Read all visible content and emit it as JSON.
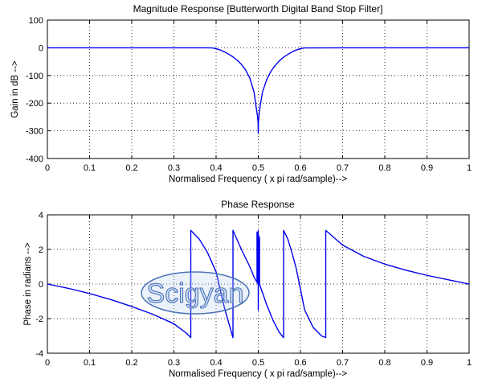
{
  "watermark": {
    "text": "Scigyan"
  },
  "chart_data": [
    {
      "type": "line",
      "title": "Magnitude Response [Butterworth Digital Band Stop Filter]",
      "xlabel": "Normalised Frequency ( x pi rad/sample)-->",
      "ylabel": "Gain in dB -->",
      "xlim": [
        0,
        1
      ],
      "ylim": [
        -400,
        100
      ],
      "xticks": [
        "0",
        "0.1",
        "0.2",
        "0.3",
        "0.4",
        "0.5",
        "0.6",
        "0.7",
        "0.8",
        "0.9",
        "1"
      ],
      "yticks": [
        "100",
        "0",
        "-100",
        "-200",
        "-300",
        "-400"
      ],
      "grid": true,
      "series": [
        {
          "color": "#0000ee",
          "x": [
            0,
            0.1,
            0.2,
            0.3,
            0.38,
            0.39,
            0.4,
            0.41,
            0.42,
            0.43,
            0.44,
            0.45,
            0.46,
            0.47,
            0.48,
            0.49,
            0.495,
            0.498,
            0.4995,
            0.5,
            0.5005,
            0.502,
            0.505,
            0.51,
            0.52,
            0.53,
            0.54,
            0.55,
            0.56,
            0.57,
            0.58,
            0.59,
            0.6,
            0.61,
            0.7,
            0.8,
            0.9,
            1.0
          ],
          "y": [
            0,
            0,
            0,
            0,
            0,
            -0.5,
            -3,
            -8,
            -15,
            -23,
            -33,
            -45,
            -60,
            -80,
            -110,
            -160,
            -215,
            -245,
            -270,
            -310,
            -265,
            -240,
            -205,
            -160,
            -115,
            -85,
            -64,
            -47,
            -34,
            -24,
            -15,
            -8,
            -3,
            -0.5,
            0,
            0,
            0,
            0
          ]
        }
      ]
    },
    {
      "type": "line",
      "title": "Phase Response",
      "xlabel": "Normalised Frequency ( x pi rad/sample)-->",
      "ylabel": "Phase in radians -->",
      "xlim": [
        0,
        1
      ],
      "ylim": [
        -4,
        4
      ],
      "xticks": [
        "0",
        "0.1",
        "0.2",
        "0.3",
        "0.4",
        "0.5",
        "0.6",
        "0.7",
        "0.8",
        "0.9",
        "1"
      ],
      "yticks": [
        "4",
        "2",
        "0",
        "-2",
        "-4"
      ],
      "grid": true,
      "series": [
        {
          "color": "#0000ee",
          "x": [
            0,
            0.05,
            0.1,
            0.15,
            0.2,
            0.25,
            0.3,
            0.33,
            0.34,
            0.34,
            0.36,
            0.38,
            0.4,
            0.42,
            0.44,
            0.44,
            0.46,
            0.48,
            0.49,
            0.497,
            0.497,
            0.499,
            0.499,
            0.5,
            0.5,
            0.501,
            0.501,
            0.503,
            0.503,
            0.51,
            0.52,
            0.535,
            0.55,
            0.56,
            0.56,
            0.57,
            0.58,
            0.59,
            0.6,
            0.61,
            0.63,
            0.65,
            0.66,
            0.66,
            0.7,
            0.75,
            0.8,
            0.85,
            0.9,
            0.95,
            1.0
          ],
          "y": [
            0,
            -0.25,
            -0.55,
            -0.9,
            -1.3,
            -1.75,
            -2.3,
            -2.85,
            -3.1,
            3.1,
            2.6,
            1.8,
            0.7,
            -1.4,
            -3.1,
            3.1,
            2.0,
            1.0,
            0.4,
            0.1,
            3.0,
            0.0,
            2.6,
            3.1,
            -1.5,
            2.8,
            0.1,
            2.7,
            0.0,
            -0.5,
            -1.2,
            -2.1,
            -2.8,
            -3.1,
            3.1,
            2.6,
            1.8,
            0.9,
            -0.3,
            -1.5,
            -2.5,
            -3.0,
            -3.1,
            3.1,
            2.25,
            1.6,
            1.15,
            0.8,
            0.5,
            0.25,
            0
          ]
        }
      ]
    }
  ]
}
